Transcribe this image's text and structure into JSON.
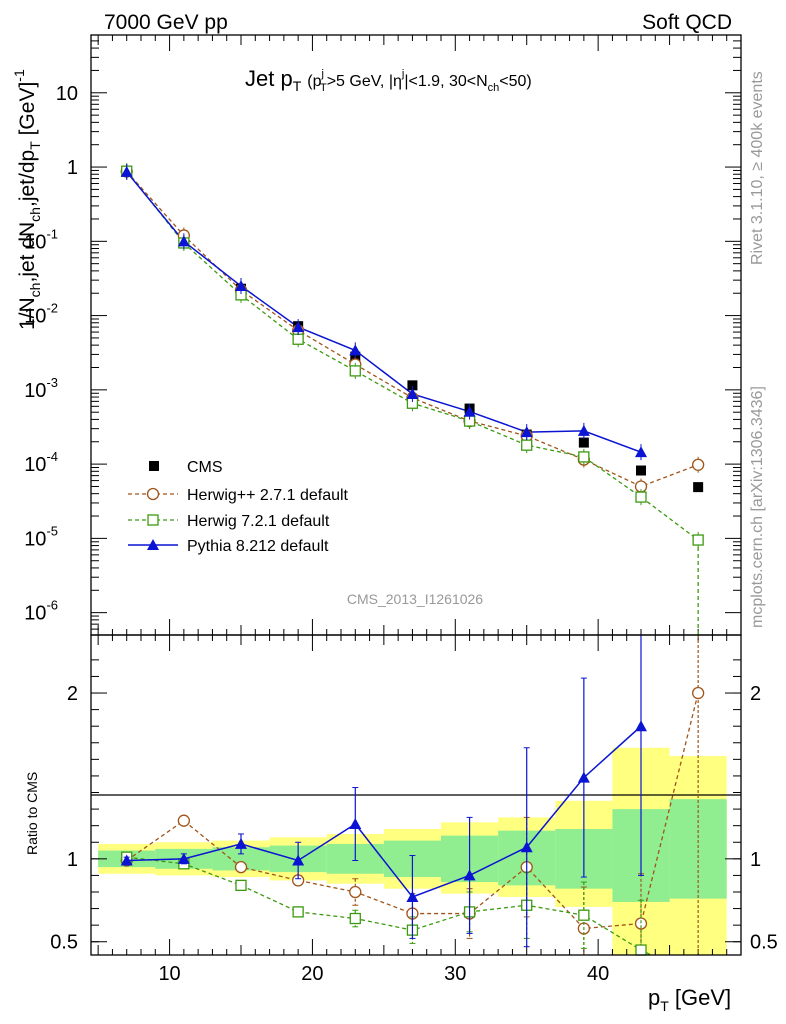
{
  "header": {
    "left": "7000 GeV pp",
    "right": "Soft QCD"
  },
  "side": {
    "rivet": "Rivet 3.1.10, ≥ 400k events",
    "mcplots": "mcplots.cern.ch [arXiv:1306.3436]"
  },
  "colors": {
    "cms": "#000000",
    "herwigpp": "#a0541a",
    "herwig7": "#3c9a10",
    "pythia": "#0a14d2",
    "band_inner": "#90ee90",
    "band_outer": "#ffff80"
  },
  "chart_data": [
    {
      "type": "scatter",
      "name": "main",
      "title": "Jet p_T (p_T^j>5 GeV, |η^j|<1.9, 30<N_ch<50)",
      "title_parts": {
        "main": "Jet p",
        "mainsub": "T",
        "open": "(p",
        "sup1": "j",
        "sub1": "T",
        "cond1": ">5 GeV, |η",
        "sup2": "j",
        "cond2": "|<1.9, 30<N",
        "sub2": "ch",
        "cond3": "<50)"
      },
      "ylabel": "1/N_ch,jet dN_ch,jet/dp_T [GeV]^-1",
      "ylabel_parts": {
        "a": "1/N",
        "asub": "ch",
        "b": ",jet dN",
        "bsub": "ch",
        "c": ",jet/dp",
        "csub": "T",
        "d": " [GeV]",
        "dsup": "-1"
      },
      "yscale": "log",
      "ylim": [
        5e-07,
        60
      ],
      "ytick_labels": [
        {
          "v": 1e-06,
          "base": "10",
          "exp": "-6"
        },
        {
          "v": 1e-05,
          "base": "10",
          "exp": "-5"
        },
        {
          "v": 0.0001,
          "base": "10",
          "exp": "-4"
        },
        {
          "v": 0.001,
          "base": "10",
          "exp": "-3"
        },
        {
          "v": 0.01,
          "base": "10",
          "exp": "-2"
        },
        {
          "v": 0.1,
          "base": "10",
          "exp": "-1"
        },
        {
          "v": 1,
          "base": "1",
          "exp": ""
        },
        {
          "v": 10,
          "base": "10",
          "exp": ""
        }
      ],
      "watermark": "CMS_2013_I1261026",
      "legend": {
        "position": "bottom-left",
        "entries": [
          "CMS",
          "Herwig++ 2.7.1 default",
          "Herwig 7.2.1 default",
          "Pythia 8.212 default"
        ]
      },
      "x": [
        7,
        11,
        15,
        19,
        23,
        27,
        31,
        35,
        39,
        43,
        47
      ],
      "series": [
        {
          "name": "CMS",
          "values": [
            0.88,
            0.1,
            0.023,
            0.0072,
            0.0028,
            0.00115,
            0.00056,
            0.00025,
            0.000195,
            8.2e-05,
            4.9e-05
          ]
        },
        {
          "name": "Herwig++ 2.7.1 default",
          "values": [
            0.87,
            0.12,
            0.022,
            0.0063,
            0.0022,
            0.00078,
            0.00038,
            0.00024,
            0.000115,
            5e-05,
            9.8e-05
          ]
        },
        {
          "name": "Herwig 7.2.1 default",
          "values": [
            0.88,
            0.095,
            0.019,
            0.0048,
            0.0018,
            0.00066,
            0.00038,
            0.00018,
            0.000125,
            3.6e-05,
            9.5e-06
          ]
        },
        {
          "name": "Pythia 8.212 default",
          "values": [
            0.86,
            0.1,
            0.025,
            0.007,
            0.0034,
            0.00088,
            0.00051,
            0.00027,
            0.00028,
            0.000145,
            null
          ]
        }
      ]
    },
    {
      "type": "line",
      "name": "ratio",
      "ylabel": "Ratio to CMS",
      "xlabel": "p_T [GeV]",
      "xlabel_parts": {
        "a": "p",
        "sub": "T",
        "b": " [GeV]"
      },
      "xlim": [
        4.5,
        50
      ],
      "ylim": [
        0.42,
        2.35
      ],
      "ytick_labels": [
        "0.5",
        "1",
        "2"
      ],
      "xtick_labels": [
        "10",
        "20",
        "30",
        "40"
      ],
      "x": [
        7,
        11,
        15,
        19,
        23,
        27,
        31,
        35,
        39,
        43,
        47
      ],
      "band_edges": [
        5,
        9,
        13,
        17,
        21,
        25,
        29,
        33,
        37,
        41,
        45,
        49
      ],
      "band_inner": [
        [
          0.95,
          1.05
        ],
        [
          0.94,
          1.06
        ],
        [
          0.93,
          1.07
        ],
        [
          0.92,
          1.08
        ],
        [
          0.91,
          1.09
        ],
        [
          0.89,
          1.11
        ],
        [
          0.86,
          1.14
        ],
        [
          0.84,
          1.17
        ],
        [
          0.82,
          1.18
        ],
        [
          0.74,
          1.3
        ],
        [
          0.76,
          1.36
        ]
      ],
      "band_outer": [
        [
          0.91,
          1.09
        ],
        [
          0.9,
          1.1
        ],
        [
          0.89,
          1.11
        ],
        [
          0.87,
          1.13
        ],
        [
          0.85,
          1.15
        ],
        [
          0.82,
          1.18
        ],
        [
          0.79,
          1.22
        ],
        [
          0.77,
          1.25
        ],
        [
          0.71,
          1.35
        ],
        [
          0.42,
          1.67
        ],
        [
          0.42,
          1.62
        ]
      ],
      "series": [
        {
          "name": "Herwig++ 2.7.1 default",
          "values": [
            0.99,
            1.23,
            0.95,
            0.87,
            0.8,
            0.67,
            0.67,
            0.95,
            0.58,
            0.61,
            2.0
          ],
          "err": [
            0.02,
            0.02,
            0.02,
            0.03,
            0.08,
            0.12,
            0.15,
            0.3,
            0.25,
            0.3,
            1.8
          ]
        },
        {
          "name": "Herwig 7.2.1 default",
          "values": [
            1.01,
            0.97,
            0.84,
            0.68,
            0.64,
            0.57,
            0.68,
            0.72,
            0.66,
            0.45,
            null
          ],
          "err": [
            0.02,
            0.02,
            0.02,
            0.03,
            0.05,
            0.08,
            0.12,
            0.2,
            0.2,
            0.3,
            null
          ]
        },
        {
          "name": "Pythia 8.212 default",
          "values": [
            0.99,
            1.0,
            1.09,
            0.99,
            1.21,
            0.77,
            0.9,
            1.07,
            1.49,
            1.8,
            null
          ],
          "err": [
            0.02,
            0.03,
            0.06,
            0.11,
            0.22,
            0.25,
            0.35,
            0.6,
            0.6,
            0.9,
            null
          ]
        }
      ]
    }
  ]
}
